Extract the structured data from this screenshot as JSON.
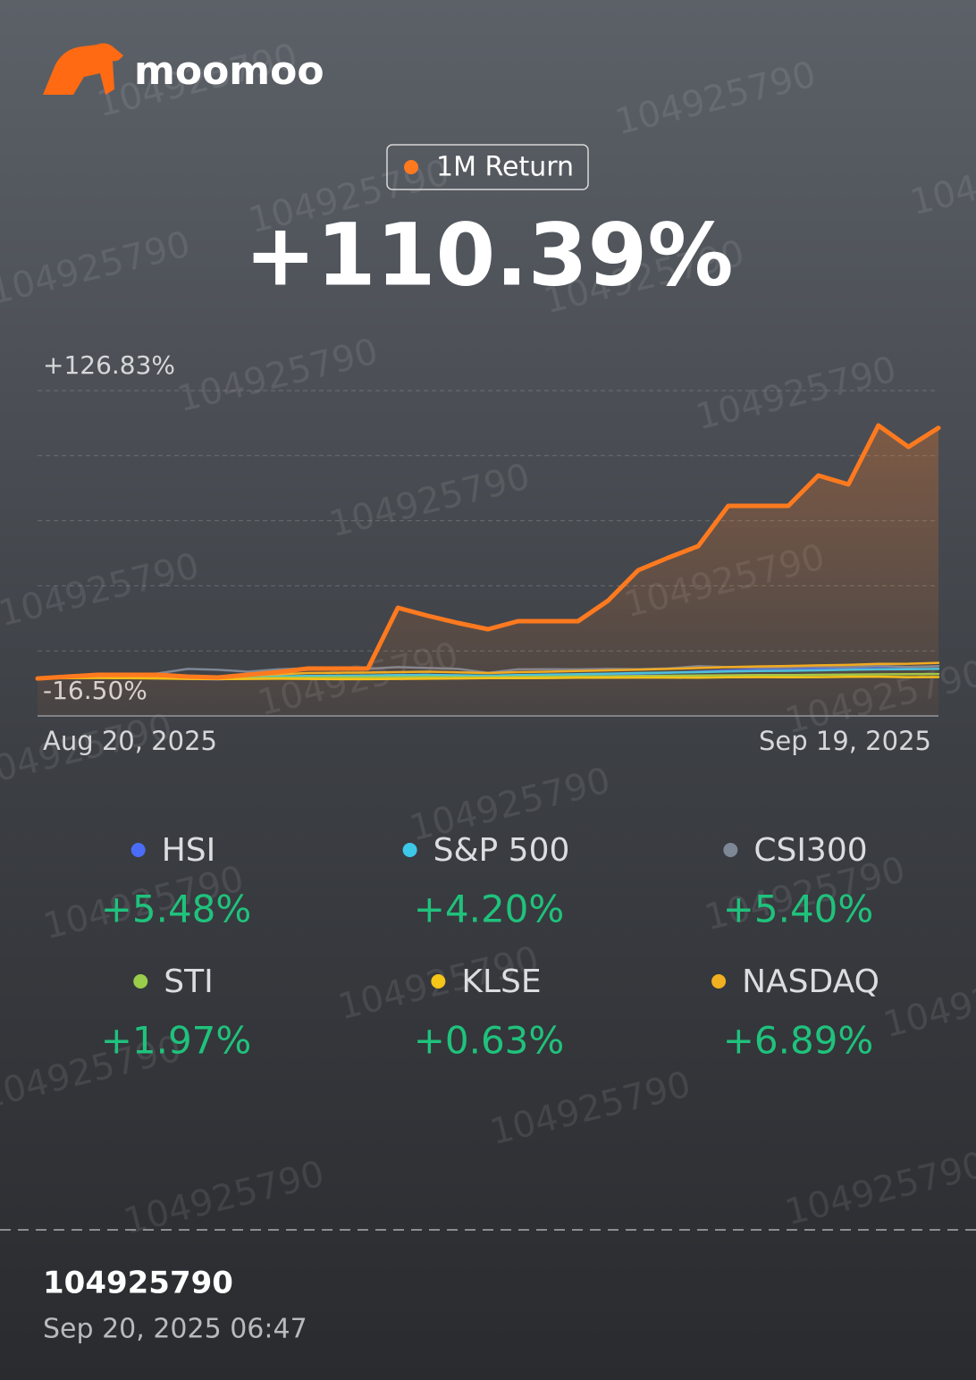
{
  "brand": "moomoo",
  "watermark": "104925790",
  "footer": {
    "account_id": "104925790",
    "timestamp": "Sep 20, 2025 06:47"
  },
  "chart_data": {
    "type": "line",
    "categories": [
      "Aug 20, 2025",
      null,
      null,
      null,
      null,
      null,
      null,
      null,
      null,
      null,
      null,
      null,
      null,
      null,
      null,
      null,
      null,
      null,
      null,
      null,
      null,
      null,
      null,
      null,
      null,
      null,
      null,
      null,
      null,
      null,
      "Sep 19, 2025"
    ],
    "ylim": [
      -16.5,
      126.83
    ],
    "yticks": [
      {
        "value": 126.83,
        "label": "+126.83%"
      },
      {
        "value": -16.5,
        "label": "-16.50%"
      }
    ],
    "grid": true,
    "series": [
      {
        "name": "1M Return",
        "color": "#ff7a1f",
        "area": true,
        "values": [
          0,
          0.83,
          1.61,
          1.61,
          1.61,
          0.83,
          0.43,
          1.61,
          2.79,
          4.37,
          4.37,
          4.37,
          31.14,
          27.6,
          24.45,
          21.69,
          25.24,
          25.24,
          25.24,
          34.29,
          47.68,
          53.2,
          58.31,
          76.03,
          76.03,
          76.03,
          89.42,
          85.48,
          111.47,
          102.02,
          110.39
        ],
        "value_labels": [
          null,
          null,
          null,
          null,
          null,
          null,
          null,
          null,
          null,
          null,
          null,
          null,
          null,
          null,
          null,
          null,
          null,
          null,
          null,
          null,
          null,
          null,
          null,
          null,
          null,
          null,
          null,
          null,
          null,
          null,
          "+110.39%"
        ]
      },
      {
        "name": "HSI",
        "color": "#4a6cf7",
        "values": [
          0,
          0.4,
          0.8,
          0.8,
          0.6,
          -0.2,
          -0.4,
          0.2,
          0.3,
          0.1,
          0.2,
          0.4,
          1.2,
          1.0,
          0.8,
          0.3,
          0.9,
          1.1,
          1.4,
          1.8,
          2.1,
          2.5,
          3.0,
          3.6,
          3.8,
          3.9,
          4.4,
          4.6,
          5.2,
          5.0,
          5.48
        ],
        "value_labels": [
          null,
          null,
          null,
          null,
          null,
          null,
          null,
          null,
          null,
          null,
          null,
          null,
          null,
          null,
          null,
          null,
          null,
          null,
          null,
          null,
          null,
          null,
          null,
          null,
          null,
          null,
          null,
          null,
          null,
          null,
          "+5.48%"
        ]
      },
      {
        "name": "S&P 500",
        "color": "#3dc8e8",
        "values": [
          0,
          0.3,
          0.6,
          0.7,
          0.7,
          0.5,
          0.4,
          0.6,
          0.9,
          1.1,
          1.2,
          1.3,
          1.5,
          1.6,
          1.4,
          1.2,
          1.5,
          1.7,
          1.9,
          2.1,
          2.4,
          2.6,
          2.8,
          3.1,
          3.3,
          3.4,
          3.6,
          3.8,
          4.0,
          4.1,
          4.2
        ],
        "value_labels": [
          null,
          null,
          null,
          null,
          null,
          null,
          null,
          null,
          null,
          null,
          null,
          null,
          null,
          null,
          null,
          null,
          null,
          null,
          null,
          null,
          null,
          null,
          null,
          null,
          null,
          null,
          null,
          null,
          null,
          null,
          "+4.20%"
        ]
      },
      {
        "name": "CSI300",
        "color": "#7d8796",
        "values": [
          0,
          0.5,
          1.0,
          1.5,
          2.2,
          4.2,
          3.8,
          3.0,
          4.0,
          4.5,
          4.4,
          4.3,
          5.0,
          4.6,
          4.2,
          2.5,
          4.0,
          4.1,
          4.0,
          4.2,
          4.1,
          4.4,
          5.4,
          5.0,
          4.8,
          4.9,
          5.2,
          5.0,
          5.6,
          5.1,
          5.4
        ],
        "value_labels": [
          null,
          null,
          null,
          null,
          null,
          null,
          null,
          null,
          null,
          null,
          null,
          null,
          null,
          null,
          null,
          null,
          null,
          null,
          null,
          null,
          null,
          null,
          null,
          null,
          null,
          null,
          null,
          null,
          null,
          null,
          "+5.40%"
        ]
      },
      {
        "name": "STI",
        "color": "#9acd4a",
        "values": [
          0,
          0.2,
          0.4,
          0.4,
          0.3,
          0.2,
          0.1,
          0.2,
          0.3,
          0.4,
          0.5,
          0.5,
          0.6,
          0.7,
          0.6,
          0.5,
          0.7,
          0.8,
          0.9,
          1.0,
          1.1,
          1.2,
          1.3,
          1.4,
          1.5,
          1.5,
          1.6,
          1.7,
          1.8,
          1.9,
          1.97
        ],
        "value_labels": [
          null,
          null,
          null,
          null,
          null,
          null,
          null,
          null,
          null,
          null,
          null,
          null,
          null,
          null,
          null,
          null,
          null,
          null,
          null,
          null,
          null,
          null,
          null,
          null,
          null,
          null,
          null,
          null,
          null,
          null,
          "+1.97%"
        ]
      },
      {
        "name": "KLSE",
        "color": "#f5c518",
        "values": [
          0,
          0.1,
          0.2,
          0.1,
          0,
          -0.2,
          -0.3,
          -0.2,
          -0.1,
          -0.2,
          -0.3,
          -0.3,
          -0.2,
          -0.1,
          0,
          0.1,
          0.1,
          0.2,
          0.3,
          0.3,
          0.4,
          0.4,
          0.3,
          0.5,
          0.6,
          0.5,
          0.6,
          0.7,
          0.8,
          0.6,
          0.63
        ],
        "value_labels": [
          null,
          null,
          null,
          null,
          null,
          null,
          null,
          null,
          null,
          null,
          null,
          null,
          null,
          null,
          null,
          null,
          null,
          null,
          null,
          null,
          null,
          null,
          null,
          null,
          null,
          null,
          null,
          null,
          null,
          null,
          "+0.63%"
        ]
      },
      {
        "name": "NASDAQ",
        "color": "#f0b020",
        "values": [
          0,
          0.4,
          0.8,
          0.9,
          0.8,
          0.6,
          0.7,
          1.2,
          1.8,
          2.4,
          2.5,
          2.6,
          2.8,
          3.0,
          2.7,
          2.4,
          2.8,
          3.0,
          3.3,
          3.6,
          3.9,
          4.2,
          4.6,
          5.0,
          5.3,
          5.5,
          5.8,
          6.0,
          6.4,
          6.5,
          6.89
        ],
        "value_labels": [
          null,
          null,
          null,
          null,
          null,
          null,
          null,
          null,
          null,
          null,
          null,
          null,
          null,
          null,
          null,
          null,
          null,
          null,
          null,
          null,
          null,
          null,
          null,
          null,
          null,
          null,
          null,
          null,
          null,
          null,
          "+6.89%"
        ]
      }
    ]
  }
}
